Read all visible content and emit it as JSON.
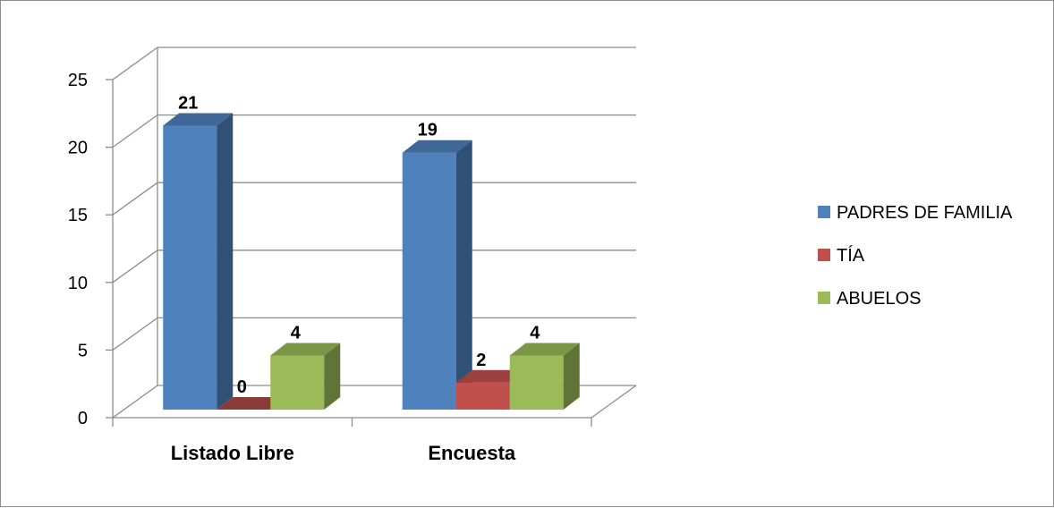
{
  "chart_data": {
    "type": "bar",
    "categories": [
      "Listado Libre",
      "Encuesta"
    ],
    "series": [
      {
        "name": "PADRES DE FAMILIA",
        "values": [
          21,
          19
        ],
        "color": "#4F81BD"
      },
      {
        "name": "TÍA",
        "values": [
          0,
          2
        ],
        "color": "#C0504D"
      },
      {
        "name": "ABUELOS",
        "values": [
          4,
          4
        ],
        "color": "#9BBB59"
      }
    ],
    "ylim": [
      0,
      25
    ],
    "yticks": [
      "0",
      "5",
      "10",
      "15",
      "20",
      "25"
    ],
    "grid": true,
    "legend": "right",
    "title": "",
    "xlabel": "",
    "ylabel": ""
  }
}
